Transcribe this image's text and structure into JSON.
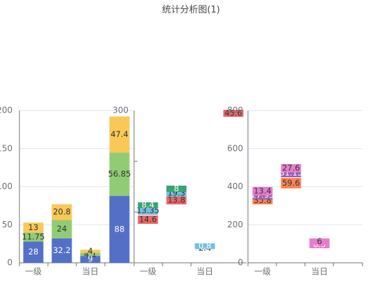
{
  "title": "统计分析图(1)",
  "colors": {
    "blue": "#5470c6",
    "green": "#91cc75",
    "yellow": "#fac858",
    "red": "#ee6666",
    "teal": "#73c0de",
    "darkgreen": "#3ba272",
    "orange": "#fc8452",
    "purple": "#9a60b4",
    "pink": "#ea7ccc",
    "axis": "#6e7079",
    "grid": "#e0e6f1"
  },
  "chart_data": [
    {
      "type": "bar",
      "stacked": true,
      "categories": [
        "一级",
        "",
        "当日",
        ""
      ],
      "ylim": [
        0,
        200
      ],
      "yticks": [
        0,
        50,
        100,
        150,
        200
      ],
      "series": [
        {
          "color": "blue",
          "label_color": "#ffffff",
          "values": [
            28,
            32.2,
            9,
            88
          ]
        },
        {
          "color": "green",
          "label_color": "#333333",
          "values": [
            11.75,
            24,
            4.1,
            56.85
          ]
        },
        {
          "color": "yellow",
          "label_color": "#333333",
          "values": [
            13,
            20.8,
            4,
            47.4
          ]
        }
      ]
    },
    {
      "type": "bar",
      "floating": true,
      "categories": [
        "一级",
        "",
        "当日"
      ],
      "ylim": [
        0,
        300
      ],
      "yticks": [
        300
      ],
      "series": [
        {
          "color": "red",
          "label_color": "#333333",
          "values": [
            14.6,
            13.8,
            null
          ]
        },
        {
          "color": "teal",
          "label_color": "#333333",
          "values": [
            13.35,
            19.3,
            null
          ]
        },
        {
          "color": "darkgreen",
          "label_color": "#ffffff",
          "values": [
            8.4,
            8,
            null
          ]
        }
      ],
      "extra_marks": [
        {
          "category": 2,
          "value": 2.4,
          "color": "#eeeeee",
          "label_color": "#333333"
        },
        {
          "category": 2,
          "value": 0.8,
          "color": "teal",
          "label_color": "#ffffff"
        },
        {
          "category": 2,
          "value": 45.6,
          "color": "red",
          "label_color": "#333333"
        }
      ]
    },
    {
      "type": "bar",
      "floating": true,
      "categories": [
        "一级",
        "",
        "当日"
      ],
      "ylim": [
        0,
        800
      ],
      "yticks": [
        0,
        200,
        400,
        600,
        800
      ],
      "series": [
        {
          "color": "orange",
          "label_color": "#333333",
          "values": [
            35.8,
            59.6,
            null
          ]
        },
        {
          "color": "purple",
          "label_color": "#ffffff",
          "values": [
            27.95,
            31.15,
            null
          ]
        },
        {
          "color": "pink",
          "label_color": "#333333",
          "values": [
            13.4,
            27.6,
            null
          ]
        }
      ],
      "extra_marks": [
        {
          "category": 2,
          "value": 6.5,
          "color": "pink",
          "label_color": "#ffffff"
        },
        {
          "category": 2,
          "value": 6,
          "color": "pink",
          "label_color": "#333333"
        }
      ]
    }
  ]
}
